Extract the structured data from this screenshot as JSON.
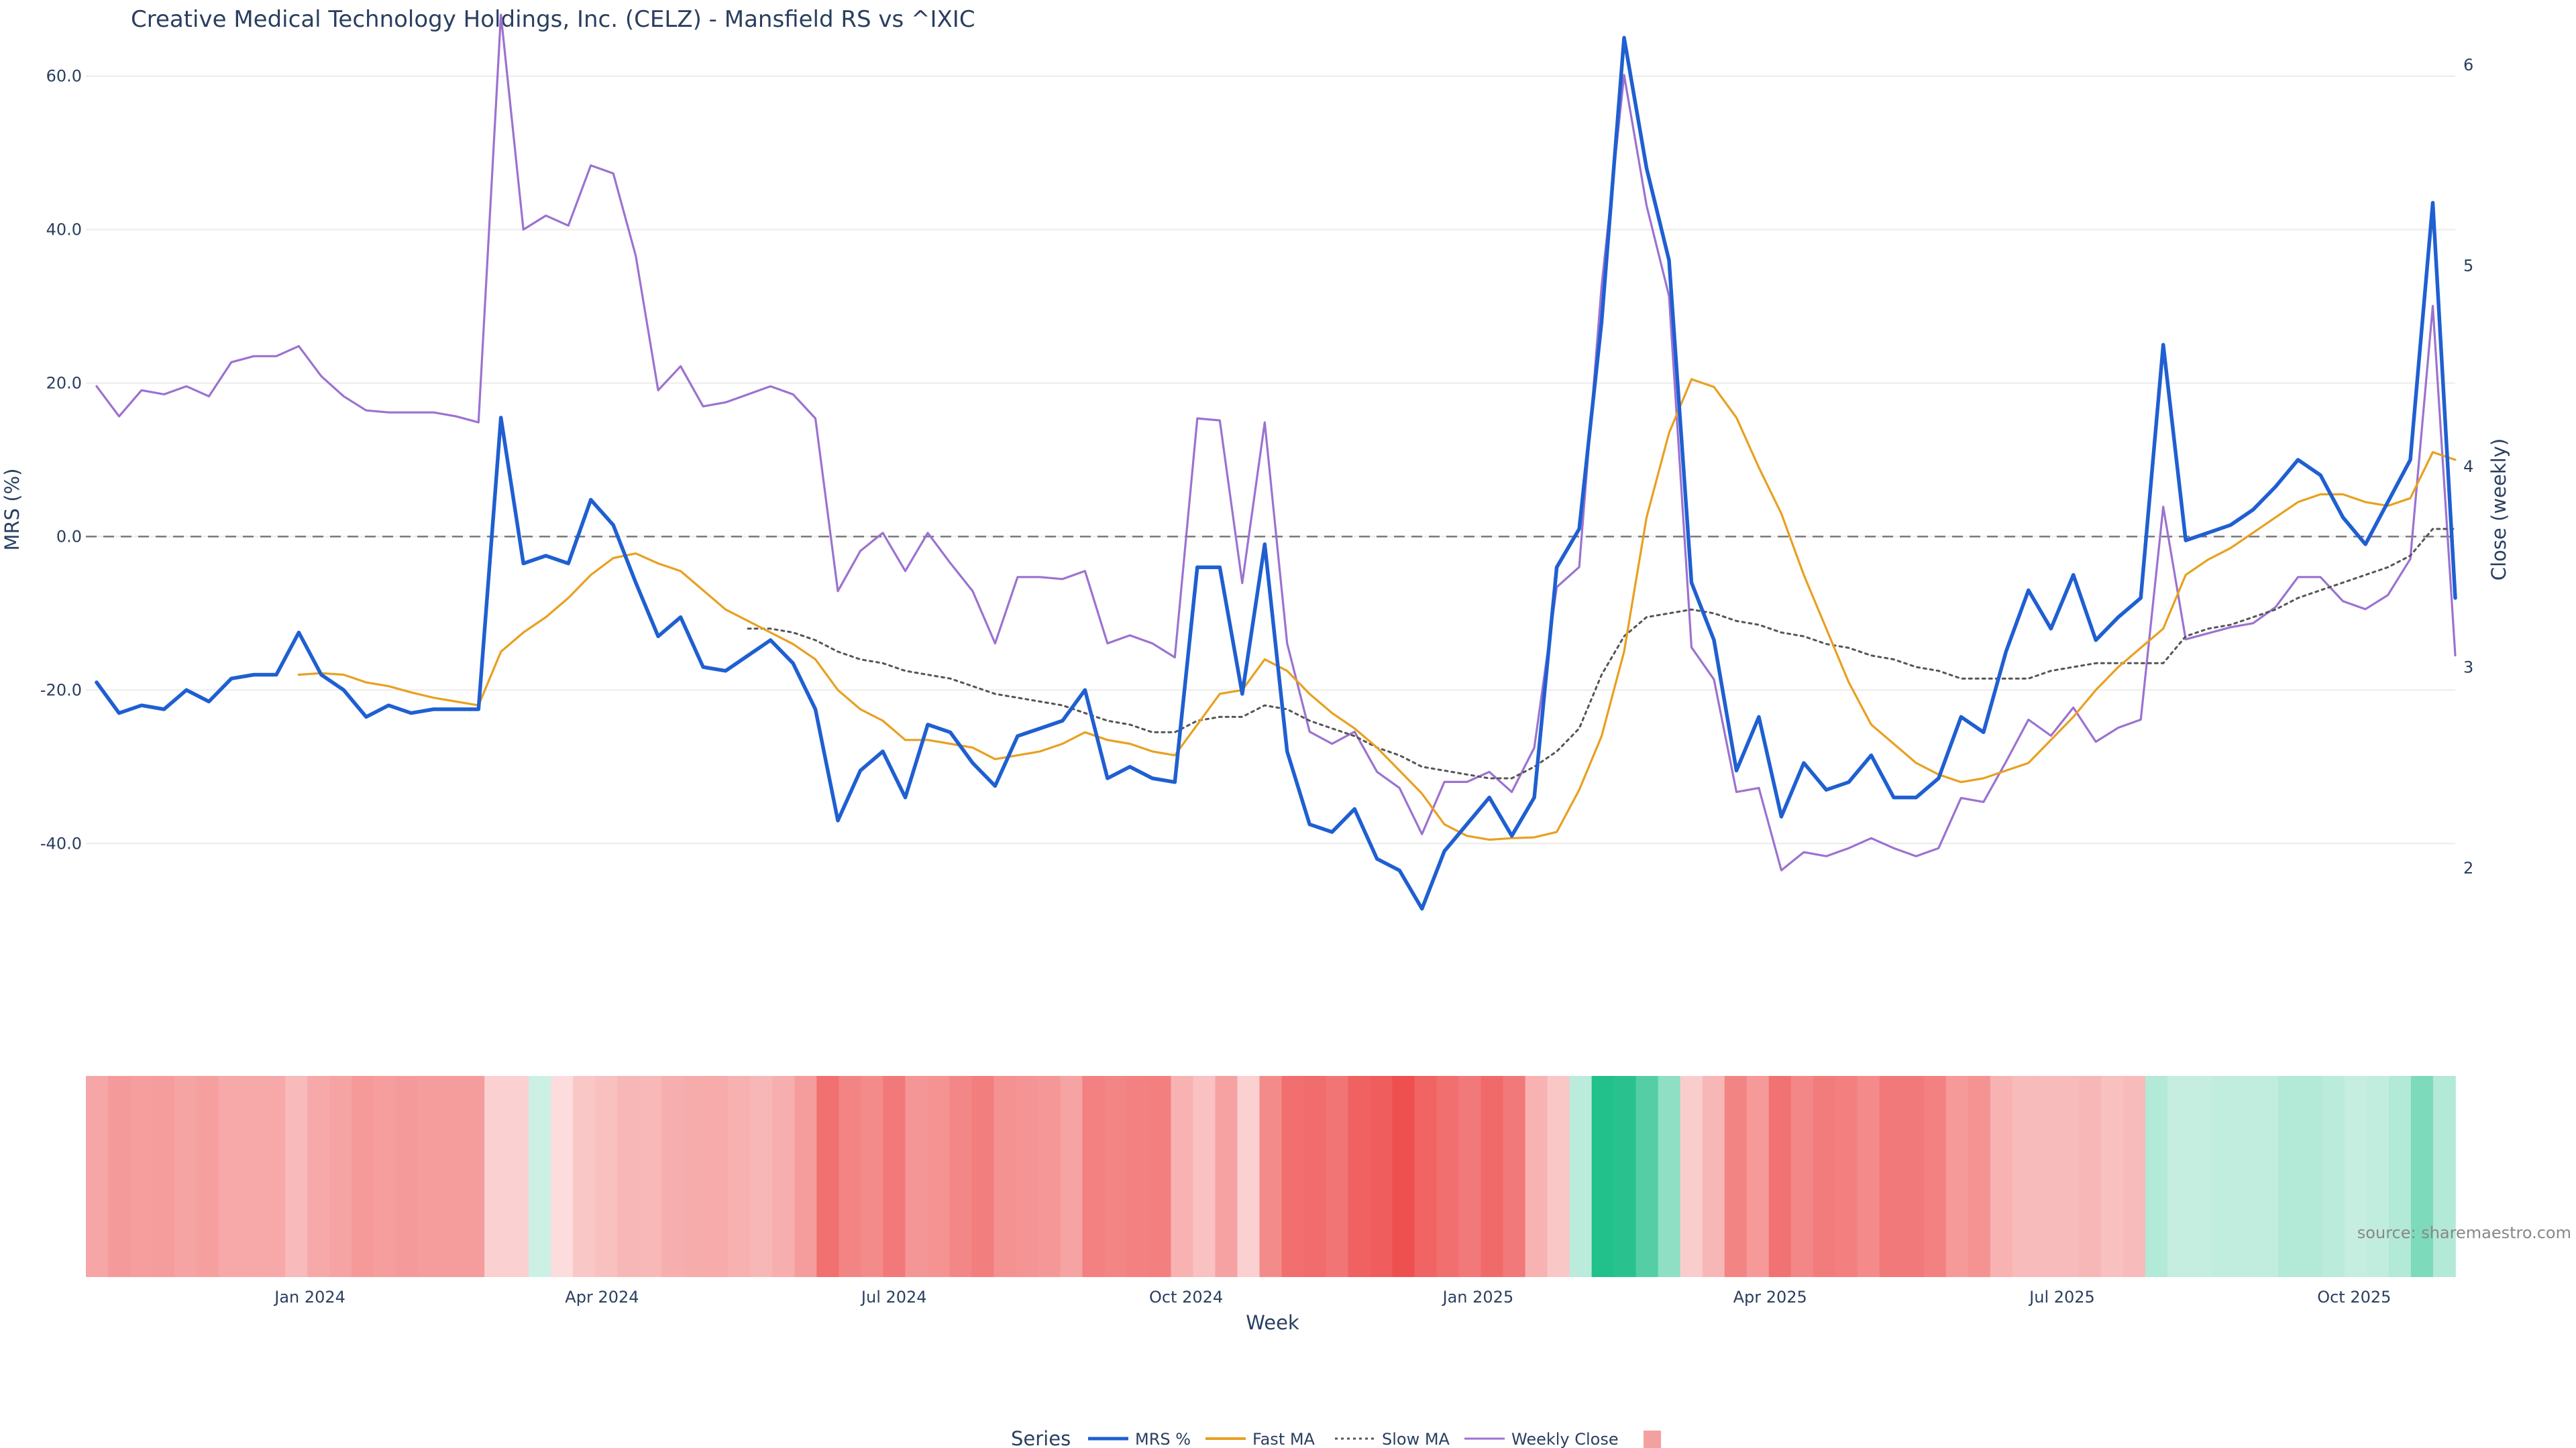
{
  "chart_data": {
    "type": "line",
    "title": "Creative Medical Technology Holdings, Inc. (CELZ) - Mansfield RS vs ^IXIC",
    "y_left_label": "MRS (%)",
    "y_right_label": "Close (weekly)",
    "x_label": "Week",
    "y_left_ticks": [
      "60.0",
      "40.0",
      "20.0",
      "0.0",
      "-20.0",
      "-40.0"
    ],
    "y_left_tick_values": [
      60,
      40,
      20,
      0,
      -20,
      -40
    ],
    "y_right_ticks": [
      "6",
      "5",
      "4",
      "3",
      "2"
    ],
    "y_right_tick_values": [
      6,
      5,
      4,
      3,
      2
    ],
    "y_left_range": [
      -55,
      68
    ],
    "y_right_range": [
      1.55,
      6.25
    ],
    "x_ticks": [
      {
        "label": "Jan 2024",
        "week": 9.5
      },
      {
        "label": "Apr 2024",
        "week": 22.5
      },
      {
        "label": "Jul 2024",
        "week": 35.5
      },
      {
        "label": "Oct 2024",
        "week": 48.5
      },
      {
        "label": "Jan 2025",
        "week": 61.5
      },
      {
        "label": "Apr 2025",
        "week": 74.5
      },
      {
        "label": "Jul 2025",
        "week": 87.5
      },
      {
        "label": "Oct 2025",
        "week": 100.5
      }
    ],
    "weeks": 106,
    "zero_line": 0,
    "series": [
      {
        "name": "MRS %",
        "color": "#1f5fd1",
        "axis": "left",
        "style": "solid",
        "values": [
          -19,
          -23,
          -22,
          -22.5,
          -20,
          -21.5,
          -18.5,
          -18,
          -18,
          -12.5,
          -18,
          -20,
          -23.5,
          -22,
          -23,
          -22.5,
          -22.5,
          -22.5,
          15.5,
          -3.5,
          -2.5,
          -3.5,
          4.8,
          1.5,
          -6,
          -13,
          -10.5,
          -17,
          -17.5,
          -15.5,
          -13.5,
          -16.5,
          -22.5,
          -37,
          -30.5,
          -28,
          -34,
          -24.5,
          -25.5,
          -29.5,
          -32.5,
          -26,
          -25,
          -24,
          -20,
          -31.5,
          -30,
          -31.5,
          -32,
          -4,
          -4,
          -20.5,
          -1,
          -28,
          -37.5,
          -38.5,
          -35.5,
          -42,
          -43.5,
          -48.5,
          -41,
          -37.5,
          -34,
          -39,
          -34,
          -4,
          1,
          28,
          65,
          48,
          36,
          -6,
          -13.5,
          -30.5,
          -23.5,
          -36.5,
          -29.5,
          -33,
          -32,
          -28.5,
          -34,
          -34,
          -31.5,
          -23.5,
          -25.5,
          -15,
          -7,
          -12,
          -5,
          -13.5,
          -10.5,
          -8,
          25,
          -0.5,
          0.5,
          1.5,
          3.5,
          6.5,
          10,
          8,
          2.5,
          -1,
          4.5,
          10,
          43.5,
          -8
        ]
      },
      {
        "name": "Fast MA",
        "color": "#e8a020",
        "axis": "left",
        "style": "solid",
        "values": [
          null,
          null,
          null,
          null,
          null,
          null,
          null,
          null,
          null,
          -18,
          -17.8,
          -18,
          -19,
          -19.5,
          -20.3,
          -21,
          -21.5,
          -22,
          -15,
          -12.5,
          -10.5,
          -8,
          -5,
          -2.8,
          -2.2,
          -3.5,
          -4.5,
          -7,
          -9.5,
          -11,
          -12.5,
          -14,
          -16,
          -20,
          -22.5,
          -24,
          -26.5,
          -26.5,
          -27,
          -27.5,
          -29,
          -28.5,
          -28,
          -27,
          -25.5,
          -26.5,
          -27,
          -28,
          -28.5,
          -24.5,
          -20.5,
          -20,
          -16,
          -17.5,
          -20.5,
          -23,
          -25,
          -27.5,
          -30.5,
          -33.5,
          -37.5,
          -39,
          -39.5,
          -39.3,
          -39.2,
          -38.5,
          -33,
          -26,
          -15,
          2.5,
          13.5,
          20.5,
          19.5,
          15.5,
          9,
          3,
          -5,
          -12,
          -19,
          -24.5,
          -27,
          -29.5,
          -31,
          -32,
          -31.5,
          -30.5,
          -29.5,
          -26.5,
          -23.5,
          -20,
          -17,
          -14.5,
          -12,
          -5,
          -3,
          -1.5,
          0.5,
          2.5,
          4.5,
          5.5,
          5.5,
          4.5,
          4,
          5,
          11,
          10
        ]
      },
      {
        "name": "Slow MA",
        "color": "#555555",
        "axis": "left",
        "style": "dotted",
        "values": [
          null,
          null,
          null,
          null,
          null,
          null,
          null,
          null,
          null,
          null,
          null,
          null,
          null,
          null,
          null,
          null,
          null,
          null,
          null,
          null,
          null,
          null,
          null,
          null,
          null,
          null,
          null,
          null,
          null,
          -12,
          -12,
          -12.5,
          -13.5,
          -15,
          -16,
          -16.5,
          -17.5,
          -18,
          -18.5,
          -19.5,
          -20.5,
          -21,
          -21.5,
          -22,
          -23,
          -24,
          -24.5,
          -25.5,
          -25.5,
          -24,
          -23.5,
          -23.5,
          -22,
          -22.5,
          -24,
          -25,
          -26,
          -27.5,
          -28.5,
          -30,
          -30.5,
          -31,
          -31.5,
          -31.5,
          -30,
          -28,
          -25,
          -18,
          -13,
          -10.5,
          -10,
          -9.5,
          -10,
          -11,
          -11.5,
          -12.5,
          -13,
          -14,
          -14.5,
          -15.5,
          -16,
          -17,
          -17.5,
          -18.5,
          -18.5,
          -18.5,
          -18.5,
          -17.5,
          -17,
          -16.5,
          -16.5,
          -16.5,
          -16.5,
          -13,
          -12,
          -11.5,
          -10.5,
          -9.5,
          -8,
          -7,
          -6,
          -5,
          -4,
          -2.5,
          1,
          1
        ]
      },
      {
        "name": "Weekly Close",
        "color": "#9b72d0",
        "axis": "right",
        "style": "solid",
        "values": [
          4.4,
          4.25,
          4.38,
          4.36,
          4.4,
          4.35,
          4.52,
          4.55,
          4.55,
          4.6,
          4.45,
          4.35,
          4.28,
          4.27,
          4.27,
          4.27,
          4.25,
          4.22,
          6.25,
          5.18,
          5.25,
          5.2,
          5.5,
          5.46,
          5.05,
          4.38,
          4.5,
          4.3,
          4.32,
          4.36,
          4.4,
          4.36,
          4.24,
          3.38,
          3.58,
          3.67,
          3.48,
          3.67,
          3.52,
          3.38,
          3.12,
          3.45,
          3.45,
          3.44,
          3.48,
          3.12,
          3.16,
          3.12,
          3.05,
          4.24,
          4.23,
          3.42,
          4.22,
          3.12,
          2.68,
          2.62,
          2.68,
          2.48,
          2.4,
          2.17,
          2.43,
          2.43,
          2.48,
          2.38,
          2.6,
          3.4,
          3.5,
          4.9,
          5.95,
          5.3,
          4.85,
          3.1,
          2.94,
          2.38,
          2.4,
          1.99,
          2.08,
          2.06,
          2.1,
          2.15,
          2.1,
          2.06,
          2.1,
          2.35,
          2.33,
          2.53,
          2.74,
          2.66,
          2.8,
          2.63,
          2.7,
          2.74,
          3.8,
          3.14,
          3.17,
          3.2,
          3.22,
          3.3,
          3.45,
          3.45,
          3.33,
          3.29,
          3.36,
          3.54,
          4.8,
          3.06
        ]
      }
    ],
    "heatmap": {
      "description_colorscale": "red for negative MRS, green for positive MRS",
      "values": [
        -19,
        -23,
        -22,
        -22.5,
        -20,
        -21.5,
        -18.5,
        -18,
        -18,
        -12.5,
        -18,
        -20,
        -23.5,
        -22,
        -23,
        -22.5,
        -22.5,
        -22.5,
        -5,
        -5,
        3,
        -1,
        -8,
        -10.5,
        -13.5,
        -13,
        -16.5,
        -17,
        -17.5,
        -15.5,
        -13.5,
        -16.5,
        -22.5,
        -37,
        -30.5,
        -28,
        -34,
        -24.5,
        -25.5,
        -29.5,
        -32.5,
        -26,
        -25,
        -24,
        -20,
        -31.5,
        -30,
        -31.5,
        -32,
        -15,
        -10,
        -20.5,
        -5,
        -28,
        -37.5,
        -38.5,
        -35.5,
        -42,
        -43.5,
        -48.5,
        -41,
        -37.5,
        -34,
        -39,
        -34,
        -15,
        -8,
        8,
        65,
        48,
        36,
        20,
        -6,
        -13.5,
        -30.5,
        -23.5,
        -36.5,
        -29.5,
        -33,
        -32,
        -28.5,
        -34,
        -34,
        -31.5,
        -23.5,
        -25.5,
        -15,
        -12,
        -12,
        -12,
        -13.5,
        -10.5,
        -12,
        10,
        5,
        5,
        6,
        6,
        6.5,
        10,
        10,
        8,
        5,
        6,
        10,
        25,
        10
      ]
    }
  },
  "legend": {
    "title": "Series",
    "items": [
      "MRS %",
      "Fast MA",
      "Slow MA",
      "Weekly Close",
      ""
    ]
  },
  "source": "source: sharemaestro.com",
  "colors": {
    "mrs": "#1f5fd1",
    "fast_ma": "#e8a020",
    "slow_ma": "#555555",
    "weekly_close": "#9b72d0",
    "heat_neg": "#ee4f4f",
    "heat_pos": "#22c08a"
  }
}
